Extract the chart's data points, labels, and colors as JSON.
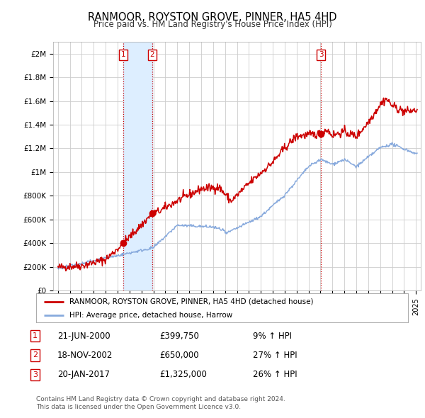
{
  "title": "RANMOOR, ROYSTON GROVE, PINNER, HA5 4HD",
  "subtitle": "Price paid vs. HM Land Registry's House Price Index (HPI)",
  "ylabel_ticks": [
    "£0",
    "£200K",
    "£400K",
    "£600K",
    "£800K",
    "£1M",
    "£1.2M",
    "£1.4M",
    "£1.6M",
    "£1.8M",
    "£2M"
  ],
  "ytick_vals": [
    0,
    200000,
    400000,
    600000,
    800000,
    1000000,
    1200000,
    1400000,
    1600000,
    1800000,
    2000000
  ],
  "ylim": [
    0,
    2100000
  ],
  "xlim_start": 1994.6,
  "xlim_end": 2025.4,
  "red_line_color": "#cc0000",
  "blue_line_color": "#88aadd",
  "shade_color": "#ddeeff",
  "transaction_markers": [
    {
      "year": 2000.47,
      "price": 399750,
      "label": "1"
    },
    {
      "year": 2002.89,
      "price": 650000,
      "label": "2"
    },
    {
      "year": 2017.05,
      "price": 1325000,
      "label": "3"
    }
  ],
  "vline_color": "#cc0000",
  "legend_entries": [
    "RANMOOR, ROYSTON GROVE, PINNER, HA5 4HD (detached house)",
    "HPI: Average price, detached house, Harrow"
  ],
  "table_rows": [
    {
      "num": "1",
      "date": "21-JUN-2000",
      "price": "£399,750",
      "change": "9% ↑ HPI"
    },
    {
      "num": "2",
      "date": "18-NOV-2002",
      "price": "£650,000",
      "change": "27% ↑ HPI"
    },
    {
      "num": "3",
      "date": "20-JAN-2017",
      "price": "£1,325,000",
      "change": "26% ↑ HPI"
    }
  ],
  "footer": "Contains HM Land Registry data © Crown copyright and database right 2024.\nThis data is licensed under the Open Government Licence v3.0.",
  "background_color": "#ffffff",
  "grid_color": "#cccccc"
}
